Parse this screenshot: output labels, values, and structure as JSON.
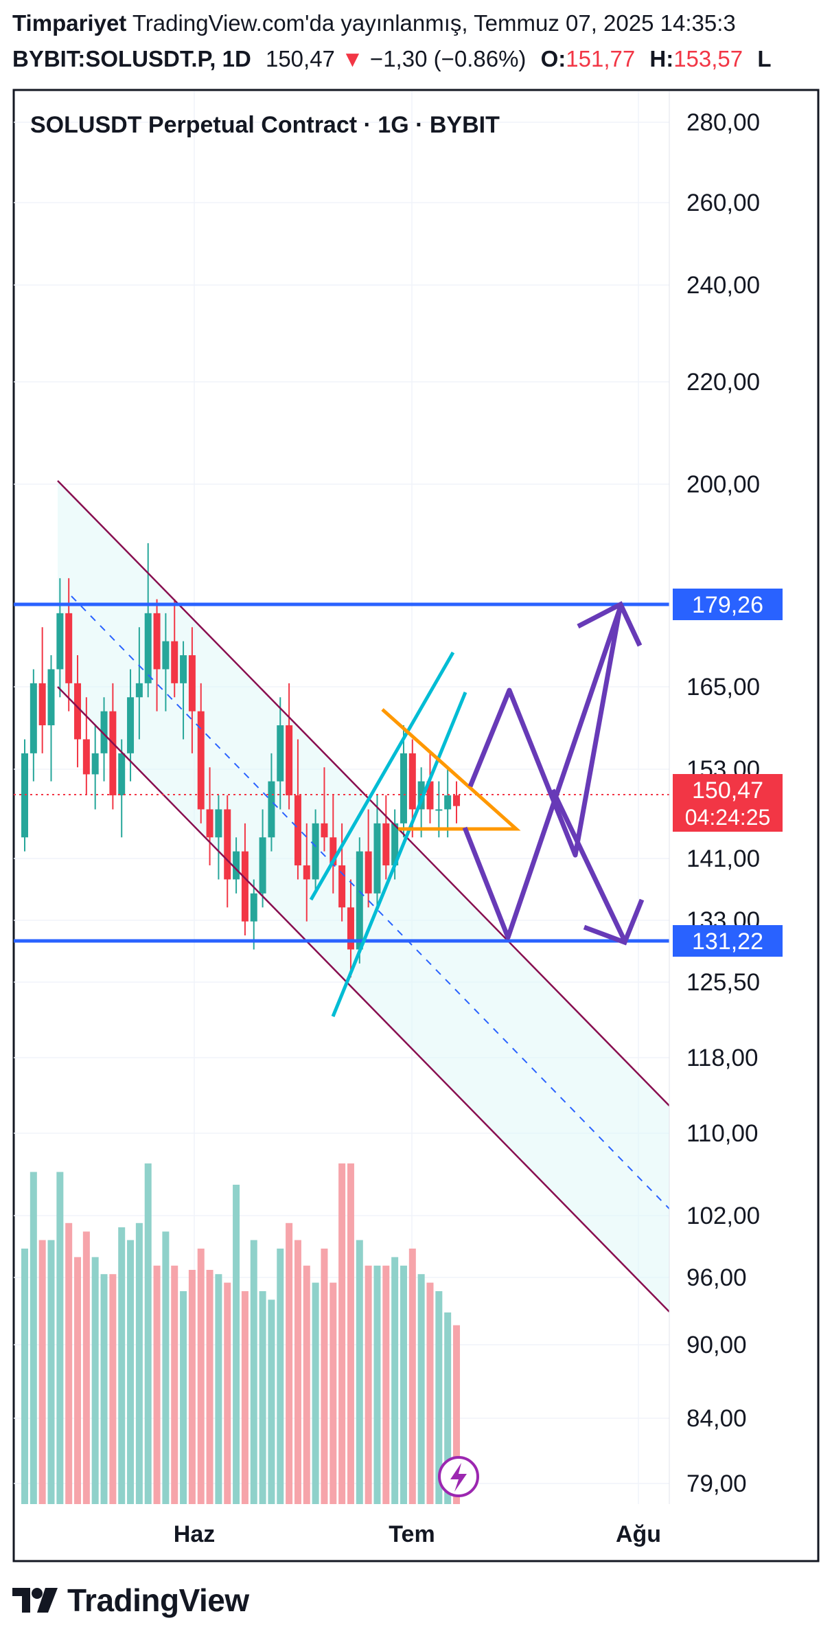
{
  "header": {
    "author": "Timpariyet",
    "published": "TradingView.com'da yayınlanmış, Temmuz 07, 2025 14:35:3",
    "symbol": "BYBIT:SOLUSDT.P, 1D",
    "last": "150,47",
    "down_arrow": "▼",
    "change": "−1,30 (−0.86%)",
    "open_label": "O:",
    "open_value": "151,77",
    "high_label": "H:",
    "high_value": "153,57",
    "low_label": "L"
  },
  "chart_data": {
    "type": "candlestick",
    "title": "SOLUSDT Perpetual Contract · 1G · BYBIT",
    "y_ticks": [
      "280,00",
      "260,00",
      "240,00",
      "220,00",
      "200,00",
      "165,00",
      "153,00",
      "141,00",
      "133,00",
      "125,50",
      "118,00",
      "110,00",
      "102,00",
      "96,00",
      "90,00",
      "84,00",
      "79,00"
    ],
    "x_ticks": [
      "Haz",
      "Tem",
      "Ağu"
    ],
    "price_labels": [
      {
        "value": "179,26",
        "color": "#2962ff"
      },
      {
        "value": "131,22",
        "color": "#2962ff"
      },
      {
        "value": "150,47",
        "sub": "04:24:25",
        "color": "#f23645"
      }
    ],
    "candles": [
      [
        146,
        160,
        144,
        158
      ],
      [
        158,
        170,
        154,
        168
      ],
      [
        168,
        176,
        158,
        162
      ],
      [
        162,
        172,
        154,
        170
      ],
      [
        170,
        183,
        166,
        178
      ],
      [
        178,
        183,
        164,
        168
      ],
      [
        168,
        172,
        156,
        160
      ],
      [
        160,
        166,
        152,
        155
      ],
      [
        155,
        162,
        150,
        158
      ],
      [
        158,
        166,
        154,
        164
      ],
      [
        164,
        168,
        150,
        152
      ],
      [
        152,
        160,
        146,
        158
      ],
      [
        158,
        170,
        154,
        166
      ],
      [
        166,
        176,
        160,
        168
      ],
      [
        168,
        188,
        166,
        178
      ],
      [
        178,
        180,
        164,
        170
      ],
      [
        170,
        178,
        164,
        174
      ],
      [
        174,
        180,
        166,
        168
      ],
      [
        168,
        174,
        160,
        172
      ],
      [
        172,
        176,
        158,
        164
      ],
      [
        164,
        168,
        148,
        150
      ],
      [
        150,
        156,
        142,
        146
      ],
      [
        146,
        152,
        140,
        150
      ],
      [
        150,
        152,
        136,
        140
      ],
      [
        140,
        146,
        138,
        144
      ],
      [
        144,
        148,
        132,
        134
      ],
      [
        134,
        140,
        130,
        138
      ],
      [
        138,
        150,
        136,
        146
      ],
      [
        146,
        158,
        144,
        154
      ],
      [
        154,
        166,
        150,
        162
      ],
      [
        162,
        168,
        150,
        152
      ],
      [
        152,
        160,
        140,
        142
      ],
      [
        142,
        148,
        134,
        140
      ],
      [
        140,
        150,
        138,
        148
      ],
      [
        148,
        156,
        144,
        146
      ],
      [
        146,
        152,
        138,
        142
      ],
      [
        142,
        148,
        134,
        136
      ],
      [
        136,
        140,
        126,
        130
      ],
      [
        130,
        146,
        128,
        144
      ],
      [
        144,
        150,
        136,
        138
      ],
      [
        138,
        152,
        136,
        148
      ],
      [
        148,
        152,
        140,
        142
      ],
      [
        142,
        150,
        140,
        148
      ],
      [
        148,
        162,
        146,
        158
      ],
      [
        158,
        160,
        146,
        150
      ],
      [
        150,
        156,
        146,
        154
      ],
      [
        154,
        158,
        148,
        150
      ],
      [
        150,
        154,
        146,
        150
      ],
      [
        150,
        156,
        146,
        152
      ],
      [
        152,
        154,
        148,
        150.47
      ]
    ],
    "volumes": [
      60,
      78,
      62,
      62,
      78,
      66,
      58,
      64,
      58,
      54,
      54,
      65,
      62,
      66,
      80,
      56,
      64,
      56,
      50,
      55,
      60,
      55,
      54,
      52,
      75,
      50,
      62,
      50,
      48,
      60,
      66,
      62,
      56,
      52,
      60,
      52,
      80,
      80,
      62,
      56,
      56,
      56,
      58,
      56,
      60,
      54,
      52,
      50,
      45,
      42
    ]
  },
  "footer": {
    "brand": "TradingView"
  },
  "colors": {
    "up": "#26a69a",
    "down": "#f23645",
    "level": "#2962ff",
    "channel": "#880e4f",
    "fill": "#e0f7f7",
    "cyan": "#00bcd4",
    "orange": "#ff9800",
    "purple": "#673ab7"
  }
}
